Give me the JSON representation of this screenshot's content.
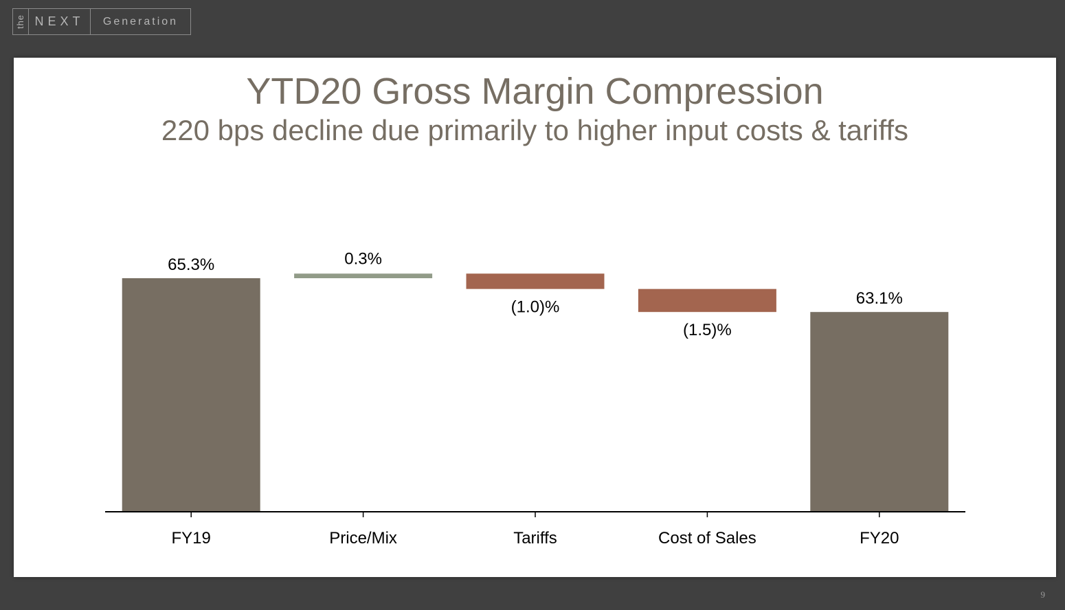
{
  "logo": {
    "the": "the",
    "next": "NEXT",
    "generation": "Generation"
  },
  "slide": {
    "title": "YTD20 Gross Margin Compression",
    "subtitle": "220 bps decline due primarily to higher input costs & tariffs",
    "page_number": "9"
  },
  "colors": {
    "total": "#776e62",
    "increase": "#919b88",
    "decrease": "#a3654f",
    "axis": "#000000"
  },
  "chart_data": {
    "type": "bar",
    "subtype": "waterfall",
    "title": "YTD20 Gross Margin Compression",
    "categories": [
      "FY19",
      "Price/Mix",
      "Tariffs",
      "Cost of Sales",
      "FY20"
    ],
    "values": [
      65.3,
      0.3,
      -1.0,
      -1.5,
      63.1
    ],
    "kinds": [
      "total",
      "increase",
      "decrease",
      "decrease",
      "total"
    ],
    "labels": [
      "65.3%",
      "0.3%",
      "(1.0)%",
      "(1.5)%",
      "63.1%"
    ],
    "xlabel": "",
    "ylabel": "",
    "ylim": [
      0,
      66
    ],
    "grid": false,
    "legend": "none"
  }
}
